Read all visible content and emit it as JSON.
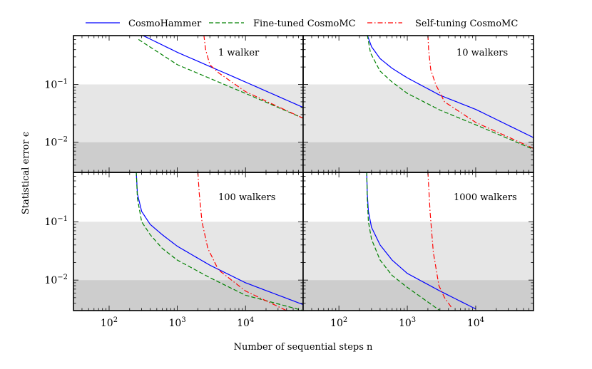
{
  "chart_data": {
    "type": "line",
    "xlabel": "Number of sequential steps n",
    "ylabel": "Statistical error ϵ",
    "x_scale": "log",
    "y_scale": "log",
    "xlim": [
      30,
      70000
    ],
    "ylim": [
      0.003,
      0.7
    ],
    "y_ticks": [
      {
        "value": 0.1,
        "base": "10",
        "exp": "−1"
      },
      {
        "value": 0.01,
        "base": "10",
        "exp": "−2"
      }
    ],
    "x_ticks": [
      {
        "value": 100,
        "base": "10",
        "exp": "2"
      },
      {
        "value": 1000,
        "base": "10",
        "exp": "3"
      },
      {
        "value": 10000,
        "base": "10",
        "exp": "4"
      }
    ],
    "shaded_bands": [
      {
        "from": 0.01,
        "to": 0.1,
        "color": "#e6e6e6"
      },
      {
        "from": 0.003,
        "to": 0.01,
        "color": "#cdcdcd"
      }
    ],
    "legend": {
      "placement": "top",
      "entries": [
        {
          "label": "CosmoHammer",
          "series": "cosmohammer"
        },
        {
          "label": "Fine-tuned CosmoMC",
          "series": "finetuned"
        },
        {
          "label": "Self-tuning CosmoMC",
          "series": "selftuning"
        }
      ]
    },
    "series_styles": {
      "cosmohammer": {
        "color": "#0000ff",
        "dash": "solid"
      },
      "finetuned": {
        "color": "#008000",
        "dash": "dashed"
      },
      "selftuning": {
        "color": "#ff0000",
        "dash": "dashdot"
      }
    },
    "panels": [
      {
        "label": "1 walker",
        "series": [
          {
            "id": "cosmohammer",
            "x": [
              300,
              1000,
              10000,
              70000
            ],
            "y": [
              0.72,
              0.36,
              0.11,
              0.04
            ]
          },
          {
            "id": "finetuned",
            "x": [
              270,
              1000,
              10000,
              70000
            ],
            "y": [
              0.6,
              0.22,
              0.07,
              0.026
            ]
          },
          {
            "id": "selftuning",
            "x": [
              2450,
              2600,
              3000,
              4000,
              10000,
              70000
            ],
            "y": [
              0.72,
              0.4,
              0.22,
              0.16,
              0.075,
              0.026
            ]
          }
        ]
      },
      {
        "label": "10 walkers",
        "series": [
          {
            "id": "cosmohammer",
            "x": [
              260,
              300,
              400,
              600,
              1000,
              3000,
              10000,
              70000
            ],
            "y": [
              0.72,
              0.45,
              0.28,
              0.19,
              0.13,
              0.065,
              0.037,
              0.012
            ]
          },
          {
            "id": "finetuned",
            "x": [
              260,
              290,
              400,
              600,
              1000,
              3000,
              10000,
              70000
            ],
            "y": [
              0.72,
              0.35,
              0.17,
              0.11,
              0.07,
              0.036,
              0.02,
              0.0075
            ]
          },
          {
            "id": "selftuning",
            "x": [
              2000,
              2050,
              2200,
              2600,
              3500,
              10000,
              70000
            ],
            "y": [
              0.72,
              0.4,
              0.18,
              0.1,
              0.05,
              0.022,
              0.0078
            ]
          }
        ]
      },
      {
        "label": "100 walkers",
        "series": [
          {
            "id": "cosmohammer",
            "x": [
              250,
              260,
              300,
              400,
              600,
              1000,
              3000,
              10000,
              70000
            ],
            "y": [
              0.72,
              0.3,
              0.15,
              0.09,
              0.06,
              0.038,
              0.018,
              0.009,
              0.0038
            ]
          },
          {
            "id": "finetuned",
            "x": [
              250,
              260,
              300,
              400,
              600,
              1000,
              3000,
              10000,
              70000
            ],
            "y": [
              0.72,
              0.25,
              0.1,
              0.06,
              0.035,
              0.022,
              0.011,
              0.0055,
              0.003
            ]
          },
          {
            "id": "selftuning",
            "x": [
              2000,
              2100,
              2300,
              2800,
              4000,
              10000,
              40000
            ],
            "y": [
              0.72,
              0.3,
              0.1,
              0.035,
              0.015,
              0.0065,
              0.003
            ]
          }
        ]
      },
      {
        "label": "1000 walkers",
        "series": [
          {
            "id": "cosmohammer",
            "x": [
              255,
              260,
              270,
              300,
              400,
              600,
              1000,
              3000,
              10000
            ],
            "y": [
              0.72,
              0.3,
              0.15,
              0.08,
              0.04,
              0.022,
              0.013,
              0.0065,
              0.0032
            ]
          },
          {
            "id": "finetuned",
            "x": [
              255,
              260,
              270,
              300,
              400,
              600,
              1000,
              3000
            ],
            "y": [
              0.72,
              0.25,
              0.1,
              0.05,
              0.022,
              0.012,
              0.0075,
              0.003
            ]
          },
          {
            "id": "selftuning",
            "x": [
              2000,
              2150,
              2400,
              2900,
              3500,
              4500
            ],
            "y": [
              0.72,
              0.15,
              0.03,
              0.008,
              0.005,
              0.0033
            ]
          }
        ]
      }
    ]
  }
}
